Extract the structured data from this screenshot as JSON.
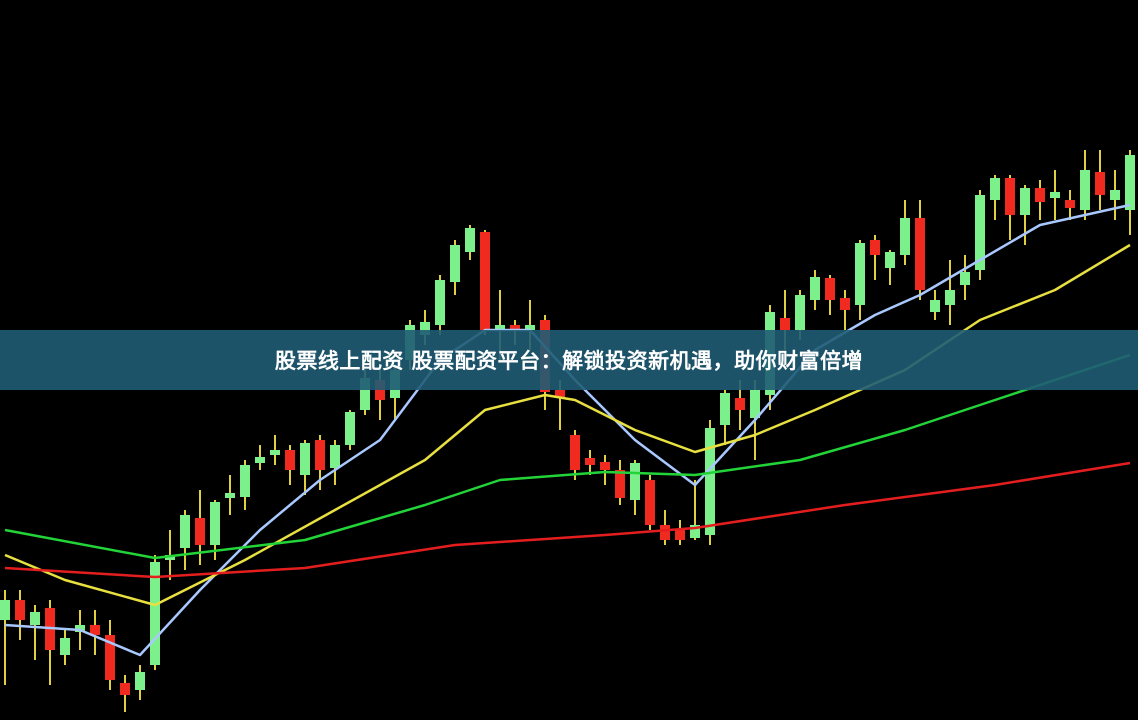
{
  "banner": {
    "title": "股票线上配资 股票配资平台：解锁投资新机遇，助你财富倍增"
  },
  "chart_data": {
    "type": "candlestick",
    "title": "",
    "xlabel": "",
    "ylabel": "",
    "axes_visible": false,
    "grid": false,
    "background": "#000000",
    "colors": {
      "up": "#7cf08a",
      "down": "#f02a1e",
      "wick": "#e0d040"
    },
    "candles_ohlc": [
      [
        10,
        13,
        3.5,
        12
      ],
      [
        12,
        13,
        8,
        10
      ],
      [
        9.5,
        11.5,
        6,
        10.8
      ],
      [
        11.2,
        12,
        3.5,
        7
      ],
      [
        6.5,
        9,
        5.5,
        8.2
      ],
      [
        8.8,
        11,
        7,
        9.5
      ],
      [
        9.5,
        11,
        6.5,
        8.5
      ],
      [
        8.5,
        10,
        3,
        4
      ],
      [
        3.7,
        4.5,
        0.8,
        2.5
      ],
      [
        3,
        5.5,
        2,
        4.8
      ],
      [
        5.5,
        16.5,
        5,
        15.8
      ],
      [
        16,
        19,
        14,
        16.5
      ],
      [
        17.2,
        21,
        15,
        20.5
      ],
      [
        20.2,
        23,
        15.5,
        17.5
      ],
      [
        17.5,
        22,
        16,
        21.8
      ],
      [
        22.2,
        24.5,
        20.5,
        22.7
      ],
      [
        22.3,
        26,
        21,
        25.5
      ],
      [
        25.7,
        27.5,
        25,
        26.3
      ],
      [
        26.5,
        28.5,
        25.5,
        27
      ],
      [
        27,
        27.5,
        23.5,
        25
      ],
      [
        24.5,
        28,
        22.5,
        27.7
      ],
      [
        28,
        28.5,
        23,
        25
      ],
      [
        25.2,
        28,
        23.5,
        27.5
      ],
      [
        27.5,
        31,
        27,
        30.8
      ],
      [
        31,
        35,
        30.5,
        34.2
      ],
      [
        34,
        35.5,
        30,
        32
      ],
      [
        32.2,
        35.5,
        30,
        35
      ],
      [
        36,
        40,
        35,
        39.5
      ],
      [
        38.5,
        41,
        37.5,
        39.8
      ],
      [
        39.5,
        44.5,
        38.5,
        44
      ],
      [
        43.8,
        48,
        42.5,
        47.5
      ],
      [
        46.8,
        49.5,
        46,
        49.2
      ],
      [
        48.8,
        49,
        38.5,
        39
      ],
      [
        39,
        43,
        36,
        39.5
      ],
      [
        39.5,
        40,
        37.5,
        39
      ],
      [
        39,
        42,
        37,
        39.5
      ],
      [
        40,
        40.5,
        31,
        32.8
      ],
      [
        33,
        34,
        29,
        32.2
      ],
      [
        28.5,
        29,
        24,
        25
      ],
      [
        26.2,
        27,
        24.5,
        25.5
      ],
      [
        25.8,
        26.5,
        23.5,
        25
      ],
      [
        25,
        26,
        21.5,
        22.2
      ],
      [
        22,
        26,
        20.5,
        25.7
      ],
      [
        24,
        24.5,
        19,
        19.5
      ],
      [
        19.5,
        21,
        17.5,
        18
      ],
      [
        19,
        20,
        17.5,
        18
      ],
      [
        18.2,
        24,
        18,
        19.5
      ],
      [
        18.5,
        30,
        17.5,
        29.2
      ],
      [
        29.5,
        33,
        27.5,
        32.7
      ],
      [
        32.2,
        34,
        29,
        31
      ],
      [
        30.2,
        34,
        26,
        33
      ],
      [
        32.5,
        41.5,
        31,
        40.8
      ],
      [
        40.2,
        43,
        37,
        39
      ],
      [
        39,
        43,
        38,
        42.5
      ],
      [
        42,
        45,
        41,
        44.3
      ],
      [
        44.2,
        44.5,
        40.5,
        42
      ],
      [
        42.2,
        43,
        39,
        41
      ],
      [
        41.5,
        48,
        40,
        47.7
      ],
      [
        48,
        48.5,
        44,
        46.5
      ],
      [
        45.2,
        47,
        43.5,
        46.8
      ],
      [
        46.5,
        52,
        45.5,
        50.2
      ],
      [
        50.2,
        52,
        42,
        43
      ],
      [
        40.8,
        43,
        40,
        42
      ],
      [
        41.5,
        46,
        39.5,
        43
      ],
      [
        43.5,
        46.5,
        42,
        44.8
      ],
      [
        45,
        53,
        44,
        52.5
      ],
      [
        52,
        54.5,
        50,
        54.2
      ],
      [
        54.2,
        54.5,
        48,
        50.5
      ],
      [
        50.5,
        53.5,
        47.5,
        53.2
      ],
      [
        53.2,
        54,
        50,
        51.8
      ],
      [
        52.2,
        55,
        50,
        52.8
      ],
      [
        52,
        53,
        50,
        51.2
      ],
      [
        51,
        57,
        50,
        55
      ],
      [
        54.8,
        57,
        51,
        52.5
      ],
      [
        52,
        55,
        50,
        53
      ],
      [
        51,
        57,
        48.5,
        56.5
      ]
    ],
    "moving_averages": [
      {
        "color": "#a8c8ff",
        "points": [
          [
            0,
            9.5
          ],
          [
            5,
            9
          ],
          [
            9,
            6.5
          ],
          [
            13,
            13
          ],
          [
            17,
            19
          ],
          [
            21,
            24
          ],
          [
            25,
            28
          ],
          [
            29,
            36
          ],
          [
            32,
            39
          ],
          [
            35,
            39
          ],
          [
            38,
            34
          ],
          [
            42,
            28
          ],
          [
            46,
            23.5
          ],
          [
            50,
            30
          ],
          [
            54,
            37
          ],
          [
            58,
            40.5
          ],
          [
            61,
            42.5
          ],
          [
            65,
            46
          ],
          [
            69,
            49.5
          ],
          [
            75,
            51.5
          ]
        ]
      },
      {
        "color": "#e8e040",
        "points": [
          [
            0,
            16.5
          ],
          [
            4,
            14
          ],
          [
            10,
            11.5
          ],
          [
            16,
            16
          ],
          [
            22,
            21
          ],
          [
            28,
            26
          ],
          [
            32,
            31
          ],
          [
            36,
            32.5
          ],
          [
            38,
            32
          ],
          [
            42,
            29
          ],
          [
            46,
            26.8
          ],
          [
            50,
            28.5
          ],
          [
            54,
            31
          ],
          [
            60,
            35
          ],
          [
            65,
            40
          ],
          [
            70,
            43
          ],
          [
            75,
            47.5
          ]
        ]
      },
      {
        "color": "#22d438",
        "points": [
          [
            0,
            19
          ],
          [
            10,
            16.2
          ],
          [
            20,
            18
          ],
          [
            28,
            21.5
          ],
          [
            33,
            24
          ],
          [
            40,
            24.8
          ],
          [
            46,
            24.5
          ],
          [
            53,
            26
          ],
          [
            60,
            29
          ],
          [
            66,
            32
          ],
          [
            75,
            36.5
          ]
        ]
      },
      {
        "color": "#e41e1e",
        "points": [
          [
            0,
            15.2
          ],
          [
            10,
            14.3
          ],
          [
            20,
            15.2
          ],
          [
            30,
            17.5
          ],
          [
            40,
            18.5
          ],
          [
            46,
            19.2
          ],
          [
            56,
            21.5
          ],
          [
            66,
            23.5
          ],
          [
            75,
            25.7
          ]
        ]
      }
    ]
  }
}
